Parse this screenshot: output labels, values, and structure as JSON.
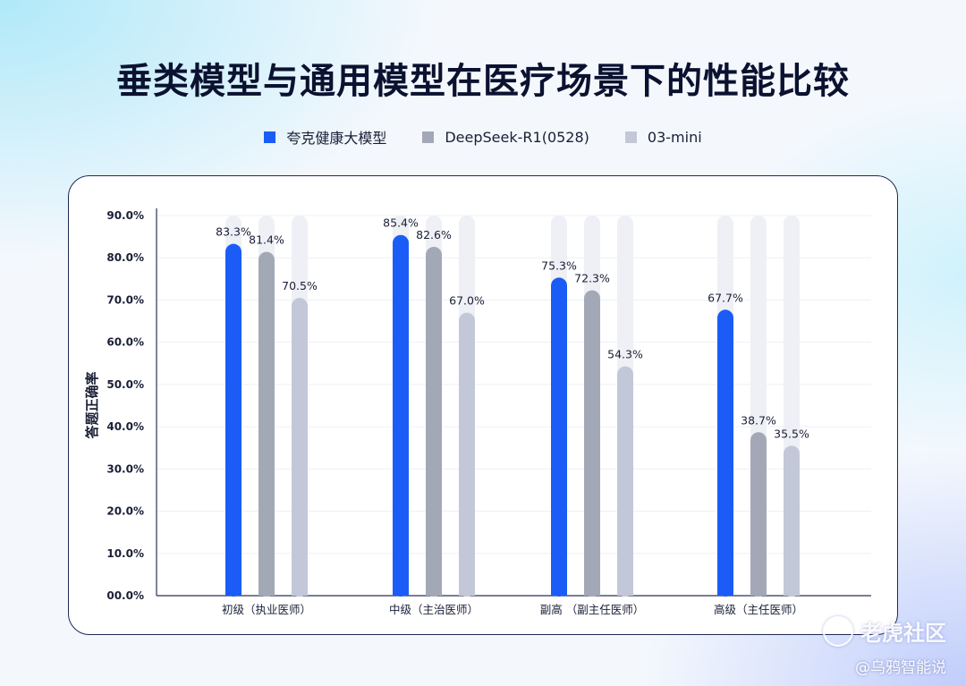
{
  "page": {
    "title": "垂类模型与通用模型在医疗场景下的性能比较"
  },
  "legend": {
    "items": [
      {
        "label": "夸克健康大模型",
        "color": "#1a5cf5"
      },
      {
        "label": "DeepSeek-R1(0528)",
        "color": "#a3a8b6"
      },
      {
        "label": "03-mini",
        "color": "#c3c8d8"
      }
    ]
  },
  "watermark": {
    "logo_text": "老虎社区",
    "credit": "@乌鸦智能说"
  },
  "chart_data": {
    "type": "bar",
    "categories": [
      "初级（执业医师）",
      "中级（主治医师）",
      "副高 （副主任医师）",
      "高级（主任医师）"
    ],
    "series": [
      {
        "name": "夸克健康大模型",
        "values": [
          83.3,
          85.4,
          75.3,
          67.7
        ],
        "labels": [
          "83.3%",
          "85.4%",
          "75.3%",
          "67.7%"
        ],
        "color": "#1a5cf5"
      },
      {
        "name": "DeepSeek-R1(0528)",
        "values": [
          81.4,
          82.6,
          72.3,
          38.7
        ],
        "labels": [
          "81.4%",
          "82.6%",
          "72.3%",
          "38.7%"
        ],
        "color": "#a3a8b6"
      },
      {
        "name": "03-mini",
        "values": [
          70.5,
          67.0,
          54.3,
          35.5
        ],
        "labels": [
          "70.5%",
          "67.0%",
          "54.3%",
          "35.5%"
        ],
        "color": "#c3c8d8"
      }
    ],
    "ylabel": "答题正确率",
    "ylim": [
      0,
      90
    ],
    "yticks": [
      "00.0%",
      "10.0%",
      "20.0%",
      "30.0%",
      "40.0%",
      "50.0%",
      "60.0%",
      "70.0%",
      "80.0%",
      "90.0%"
    ],
    "track_color": "#eef0f5",
    "grid": true,
    "legend_position": "top-center"
  }
}
